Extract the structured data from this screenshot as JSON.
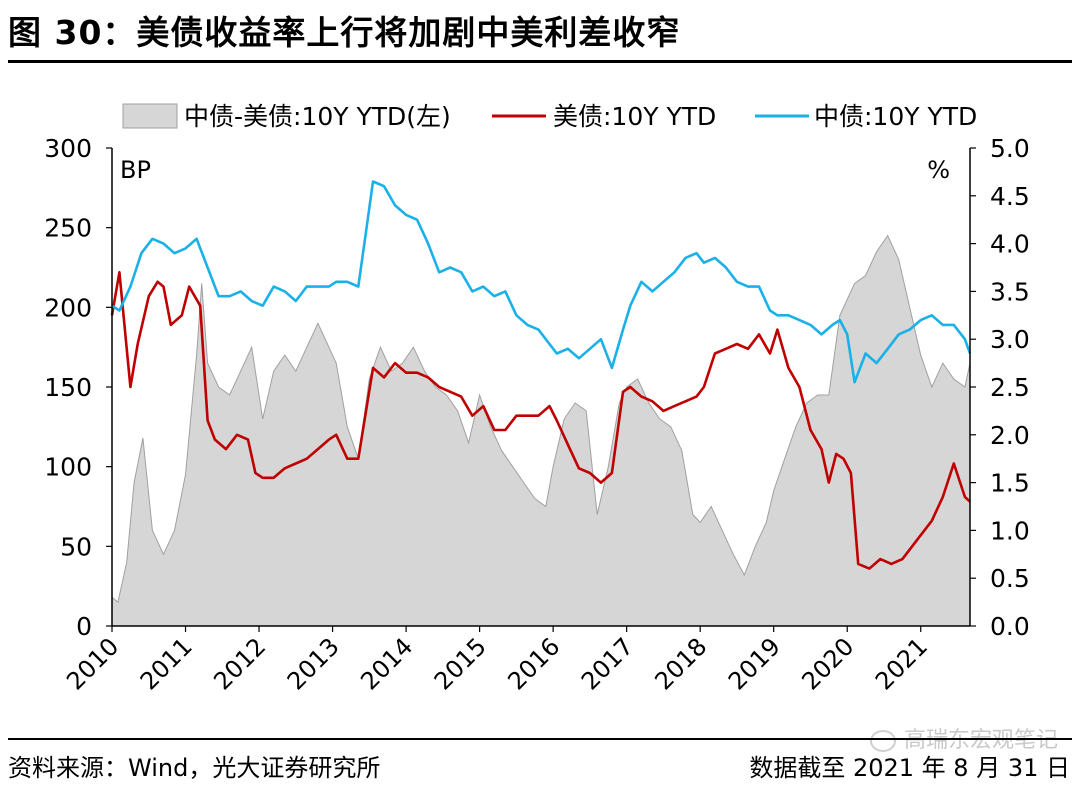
{
  "figure_title": "图 30：美债收益率上行将加剧中美利差收窄",
  "source_note": "资料来源：Wind，光大证券研究所",
  "date_note": "数据截至 2021 年 8 月 31 日",
  "watermark": "高瑞东宏观笔记",
  "colors": {
    "spread_fill": "#d6d6d6",
    "spread_edge": "#a0a0a0",
    "us_line": "#c00000",
    "cn_line": "#1ab0e8"
  },
  "chart_data": {
    "type": "line",
    "legend_position": "top",
    "grid": false,
    "x": {
      "ticks": [
        "2010",
        "2011",
        "2012",
        "2013",
        "2014",
        "2015",
        "2016",
        "2017",
        "2018",
        "2019",
        "2020",
        "2021"
      ],
      "range": [
        2010.0,
        2021.67
      ]
    },
    "y_left": {
      "label": "BP",
      "ticks": [
        "300",
        "250",
        "200",
        "150",
        "100",
        "50",
        "0"
      ],
      "range": [
        0,
        300
      ]
    },
    "y_right": {
      "label": "%",
      "ticks": [
        "5.0",
        "4.5",
        "4.0",
        "3.5",
        "3.0",
        "2.5",
        "2.0",
        "1.5",
        "1.0",
        "0.5",
        "0.0"
      ],
      "range": [
        0,
        5
      ]
    },
    "series": [
      {
        "name": "中债-美债:10Y YTD(左)",
        "type": "area",
        "axis": "left",
        "x": [
          2010.0,
          2010.08,
          2010.2,
          2010.3,
          2010.42,
          2010.55,
          2010.7,
          2010.85,
          2011.0,
          2011.15,
          2011.22,
          2011.3,
          2011.45,
          2011.6,
          2011.75,
          2011.9,
          2012.05,
          2012.2,
          2012.35,
          2012.5,
          2012.65,
          2012.8,
          2012.95,
          2013.05,
          2013.2,
          2013.35,
          2013.5,
          2013.65,
          2013.8,
          2013.95,
          2014.1,
          2014.25,
          2014.4,
          2014.55,
          2014.7,
          2014.85,
          2015.0,
          2015.15,
          2015.3,
          2015.45,
          2015.6,
          2015.75,
          2015.9,
          2016.0,
          2016.15,
          2016.3,
          2016.45,
          2016.6,
          2016.75,
          2016.9,
          2017.0,
          2017.15,
          2017.3,
          2017.45,
          2017.6,
          2017.75,
          2017.9,
          2018.0,
          2018.15,
          2018.3,
          2018.45,
          2018.6,
          2018.75,
          2018.9,
          2019.0,
          2019.15,
          2019.3,
          2019.45,
          2019.6,
          2019.75,
          2019.9,
          2020.0,
          2020.1,
          2020.25,
          2020.4,
          2020.55,
          2020.7,
          2020.85,
          2021.0,
          2021.15,
          2021.3,
          2021.45,
          2021.6,
          2021.67
        ],
        "values": [
          18,
          15,
          40,
          90,
          118,
          60,
          45,
          60,
          95,
          170,
          215,
          165,
          150,
          145,
          160,
          175,
          130,
          160,
          170,
          160,
          175,
          190,
          175,
          165,
          125,
          105,
          155,
          175,
          160,
          165,
          175,
          160,
          150,
          145,
          135,
          115,
          145,
          125,
          110,
          100,
          90,
          80,
          75,
          100,
          130,
          140,
          135,
          70,
          100,
          140,
          150,
          155,
          140,
          130,
          125,
          110,
          70,
          65,
          75,
          60,
          45,
          32,
          50,
          65,
          85,
          105,
          125,
          140,
          145,
          145,
          195,
          205,
          215,
          220,
          235,
          245,
          230,
          200,
          170,
          150,
          165,
          155,
          150,
          165
        ]
      },
      {
        "name": "美债:10Y YTD",
        "type": "line",
        "axis": "right",
        "x": [
          2010.0,
          2010.1,
          2010.25,
          2010.35,
          2010.5,
          2010.62,
          2010.7,
          2010.8,
          2010.95,
          2011.05,
          2011.2,
          2011.3,
          2011.4,
          2011.55,
          2011.7,
          2011.85,
          2011.95,
          2012.05,
          2012.2,
          2012.35,
          2012.5,
          2012.65,
          2012.8,
          2012.95,
          2013.05,
          2013.2,
          2013.35,
          2013.55,
          2013.7,
          2013.85,
          2014.0,
          2014.15,
          2014.3,
          2014.45,
          2014.6,
          2014.75,
          2014.9,
          2015.05,
          2015.2,
          2015.35,
          2015.5,
          2015.65,
          2015.8,
          2015.95,
          2016.05,
          2016.2,
          2016.35,
          2016.5,
          2016.65,
          2016.8,
          2016.95,
          2017.05,
          2017.2,
          2017.35,
          2017.5,
          2017.65,
          2017.8,
          2017.95,
          2018.05,
          2018.2,
          2018.35,
          2018.5,
          2018.65,
          2018.8,
          2018.95,
          2019.05,
          2019.2,
          2019.35,
          2019.5,
          2019.65,
          2019.75,
          2019.85,
          2019.95,
          2020.05,
          2020.15,
          2020.3,
          2020.45,
          2020.6,
          2020.75,
          2020.9,
          2021.0,
          2021.15,
          2021.3,
          2021.45,
          2021.6,
          2021.67
        ],
        "values": [
          3.25,
          3.7,
          2.5,
          2.95,
          3.45,
          3.6,
          3.55,
          3.15,
          3.25,
          3.55,
          3.35,
          2.15,
          1.95,
          1.85,
          2.0,
          1.95,
          1.6,
          1.55,
          1.55,
          1.65,
          1.7,
          1.75,
          1.85,
          1.95,
          2.0,
          1.75,
          1.75,
          2.7,
          2.6,
          2.75,
          2.65,
          2.65,
          2.6,
          2.5,
          2.45,
          2.4,
          2.2,
          2.3,
          2.05,
          2.05,
          2.2,
          2.2,
          2.2,
          2.3,
          2.15,
          1.9,
          1.65,
          1.6,
          1.5,
          1.6,
          2.45,
          2.5,
          2.4,
          2.35,
          2.25,
          2.3,
          2.35,
          2.4,
          2.5,
          2.85,
          2.9,
          2.95,
          2.9,
          3.05,
          2.85,
          3.1,
          2.7,
          2.5,
          2.05,
          1.85,
          1.5,
          1.8,
          1.75,
          1.6,
          0.65,
          0.6,
          0.7,
          0.65,
          0.7,
          0.85,
          0.95,
          1.1,
          1.35,
          1.7,
          1.35,
          1.3
        ]
      },
      {
        "name": "中债:10Y YTD",
        "type": "line",
        "axis": "right",
        "x": [
          2010.0,
          2010.1,
          2010.25,
          2010.4,
          2010.55,
          2010.7,
          2010.85,
          2011.0,
          2011.15,
          2011.3,
          2011.45,
          2011.6,
          2011.75,
          2011.9,
          2012.05,
          2012.2,
          2012.35,
          2012.5,
          2012.65,
          2012.8,
          2012.95,
          2013.05,
          2013.2,
          2013.35,
          2013.45,
          2013.55,
          2013.7,
          2013.85,
          2014.0,
          2014.15,
          2014.3,
          2014.45,
          2014.6,
          2014.75,
          2014.9,
          2015.05,
          2015.2,
          2015.35,
          2015.5,
          2015.65,
          2015.8,
          2015.95,
          2016.05,
          2016.2,
          2016.35,
          2016.5,
          2016.65,
          2016.8,
          2016.95,
          2017.05,
          2017.2,
          2017.35,
          2017.5,
          2017.65,
          2017.8,
          2017.95,
          2018.05,
          2018.2,
          2018.35,
          2018.5,
          2018.65,
          2018.8,
          2018.95,
          2019.05,
          2019.2,
          2019.35,
          2019.5,
          2019.65,
          2019.8,
          2019.9,
          2020.0,
          2020.1,
          2020.25,
          2020.4,
          2020.55,
          2020.7,
          2020.85,
          2021.0,
          2021.15,
          2021.3,
          2021.45,
          2021.6,
          2021.67
        ],
        "values": [
          3.35,
          3.3,
          3.55,
          3.9,
          4.05,
          4.0,
          3.9,
          3.95,
          4.05,
          3.75,
          3.45,
          3.45,
          3.5,
          3.4,
          3.35,
          3.55,
          3.5,
          3.4,
          3.55,
          3.55,
          3.55,
          3.6,
          3.6,
          3.55,
          4.1,
          4.65,
          4.6,
          4.4,
          4.3,
          4.25,
          4.0,
          3.7,
          3.75,
          3.7,
          3.5,
          3.55,
          3.45,
          3.5,
          3.25,
          3.15,
          3.1,
          2.95,
          2.85,
          2.9,
          2.8,
          2.9,
          3.0,
          2.7,
          3.1,
          3.35,
          3.6,
          3.5,
          3.6,
          3.7,
          3.85,
          3.9,
          3.8,
          3.85,
          3.75,
          3.6,
          3.55,
          3.55,
          3.3,
          3.25,
          3.25,
          3.2,
          3.15,
          3.05,
          3.15,
          3.2,
          3.05,
          2.55,
          2.85,
          2.75,
          2.9,
          3.05,
          3.1,
          3.2,
          3.25,
          3.15,
          3.15,
          3.0,
          2.85
        ]
      }
    ]
  }
}
